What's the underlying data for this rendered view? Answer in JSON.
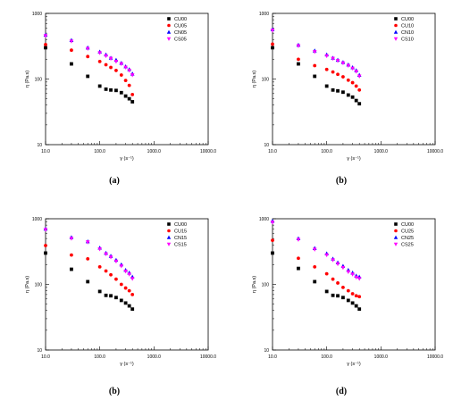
{
  "chart_data": [
    {
      "type": "scatter",
      "caption": "(a)",
      "xlabel": "γ (s⁻¹)",
      "ylabel": "η (Pa.s)",
      "xscale": "log",
      "yscale": "log",
      "xlim": [
        10,
        10000
      ],
      "ylim": [
        10,
        1000
      ],
      "x_ticks": [
        "10.0",
        "100.0",
        "1000.0",
        "10000.0"
      ],
      "y_ticks": [
        "10",
        "100",
        "1000"
      ],
      "legend_position": "top-right",
      "grid": false,
      "x": [
        10,
        30,
        60,
        100,
        130,
        160,
        200,
        250,
        300,
        350,
        400
      ],
      "series": [
        {
          "name": "CU00",
          "marker": "square",
          "color": "#000000",
          "values": [
            300,
            170,
            110,
            78,
            70,
            68,
            67,
            62,
            55,
            50,
            45
          ]
        },
        {
          "name": "CU05",
          "marker": "circle",
          "color": "#ff0000",
          "values": [
            335,
            275,
            220,
            185,
            165,
            150,
            135,
            115,
            95,
            80,
            58
          ]
        },
        {
          "name": "CN05",
          "marker": "triangle-up",
          "color": "#0000ff",
          "values": [
            470,
            390,
            300,
            260,
            235,
            210,
            195,
            175,
            155,
            140,
            120
          ]
        },
        {
          "name": "CS05",
          "marker": "triangle-down",
          "color": "#ff00ff",
          "values": [
            455,
            375,
            290,
            250,
            225,
            205,
            185,
            170,
            150,
            135,
            115
          ]
        }
      ]
    },
    {
      "type": "scatter",
      "caption": "(b)",
      "xlabel": "γ (s⁻¹)",
      "ylabel": "η (Pa.s)",
      "xscale": "log",
      "yscale": "log",
      "xlim": [
        10,
        10000
      ],
      "ylim": [
        10,
        1000
      ],
      "x_ticks": [
        "10.0",
        "100.0",
        "1000.0",
        "10000.0"
      ],
      "y_ticks": [
        "10",
        "100",
        "1000"
      ],
      "legend_position": "top-right",
      "grid": false,
      "x": [
        10,
        30,
        60,
        100,
        130,
        160,
        200,
        250,
        300,
        350,
        400
      ],
      "series": [
        {
          "name": "CU00",
          "marker": "square",
          "color": "#000000",
          "values": [
            300,
            170,
            110,
            78,
            68,
            66,
            63,
            57,
            53,
            47,
            42
          ]
        },
        {
          "name": "CU10",
          "marker": "circle",
          "color": "#ff0000",
          "values": [
            340,
            200,
            160,
            140,
            128,
            118,
            108,
            96,
            88,
            78,
            68
          ]
        },
        {
          "name": "CN10",
          "marker": "triangle-up",
          "color": "#0000ff",
          "values": [
            570,
            330,
            270,
            235,
            210,
            195,
            180,
            165,
            150,
            135,
            115
          ]
        },
        {
          "name": "CS10",
          "marker": "triangle-down",
          "color": "#ff00ff",
          "values": [
            550,
            320,
            260,
            225,
            205,
            190,
            175,
            160,
            145,
            130,
            110
          ]
        }
      ]
    },
    {
      "type": "scatter",
      "caption": "(b)",
      "xlabel": "γ (s⁻¹)",
      "ylabel": "η (Pa.s)",
      "xscale": "log",
      "yscale": "log",
      "xlim": [
        10,
        10000
      ],
      "ylim": [
        10,
        1000
      ],
      "x_ticks": [
        "10.0",
        "100.0",
        "1000.0",
        "10000.0"
      ],
      "y_ticks": [
        "10",
        "100",
        "1000"
      ],
      "legend_position": "top-right",
      "grid": false,
      "x": [
        10,
        30,
        60,
        100,
        130,
        160,
        200,
        250,
        300,
        350,
        400
      ],
      "series": [
        {
          "name": "CU00",
          "marker": "square",
          "color": "#000000",
          "values": [
            300,
            170,
            110,
            78,
            68,
            67,
            63,
            57,
            52,
            47,
            42
          ]
        },
        {
          "name": "CU15",
          "marker": "circle",
          "color": "#ff0000",
          "values": [
            390,
            280,
            245,
            185,
            160,
            140,
            120,
            100,
            88,
            80,
            70
          ]
        },
        {
          "name": "CN15",
          "marker": "triangle-up",
          "color": "#0000ff",
          "values": [
            700,
            520,
            450,
            360,
            300,
            270,
            235,
            200,
            165,
            150,
            130
          ]
        },
        {
          "name": "CS15",
          "marker": "triangle-down",
          "color": "#ff00ff",
          "values": [
            680,
            500,
            440,
            345,
            290,
            260,
            225,
            190,
            158,
            142,
            122
          ]
        }
      ]
    },
    {
      "type": "scatter",
      "caption": "(d)",
      "xlabel": "γ (s⁻¹)",
      "ylabel": "η (Pa.s)",
      "xscale": "log",
      "yscale": "log",
      "xlim": [
        10,
        10000
      ],
      "ylim": [
        10,
        1000
      ],
      "x_ticks": [
        "10.0",
        "100.0",
        "1000.0",
        "10000.0"
      ],
      "y_ticks": [
        "10",
        "100",
        "1000"
      ],
      "legend_position": "top-right",
      "grid": false,
      "x": [
        10,
        30,
        60,
        100,
        130,
        160,
        200,
        250,
        300,
        350,
        400
      ],
      "series": [
        {
          "name": "CU00",
          "marker": "square",
          "color": "#000000",
          "values": [
            300,
            175,
            110,
            78,
            68,
            67,
            63,
            57,
            52,
            47,
            42
          ]
        },
        {
          "name": "CU25",
          "marker": "circle",
          "color": "#ff0000",
          "values": [
            470,
            250,
            185,
            145,
            120,
            105,
            90,
            80,
            72,
            67,
            65
          ]
        },
        {
          "name": "CN25",
          "marker": "triangle-up",
          "color": "#0000ff",
          "values": [
            920,
            500,
            355,
            295,
            245,
            215,
            190,
            165,
            150,
            135,
            130
          ]
        },
        {
          "name": "CS25",
          "marker": "triangle-down",
          "color": "#ff00ff",
          "values": [
            880,
            480,
            340,
            280,
            235,
            205,
            180,
            155,
            142,
            128,
            122
          ]
        }
      ]
    }
  ]
}
